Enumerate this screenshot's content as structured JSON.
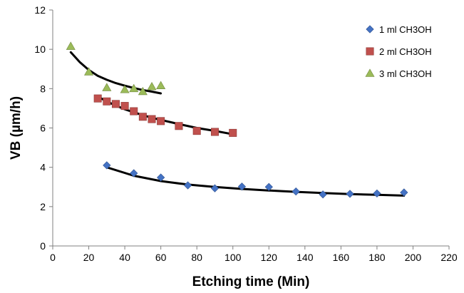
{
  "chart_data": {
    "type": "scatter",
    "xlabel": "Etching time (Min)",
    "ylabel": "VB (µm/h)",
    "xlim": [
      0,
      220
    ],
    "ylim": [
      0,
      12
    ],
    "x_ticks": [
      0,
      20,
      40,
      60,
      80,
      100,
      120,
      140,
      160,
      180,
      200,
      220
    ],
    "y_ticks": [
      0,
      2,
      4,
      6,
      8,
      10,
      12
    ],
    "grid": false,
    "legend_position": "top-right",
    "series": [
      {
        "name": "1 ml CH3OH",
        "marker": "diamond",
        "color": "#4472C4",
        "x": [
          30,
          45,
          60,
          75,
          90,
          105,
          120,
          135,
          150,
          165,
          180,
          195
        ],
        "y": [
          4.1,
          3.7,
          3.48,
          3.08,
          2.93,
          3.02,
          3.0,
          2.77,
          2.62,
          2.65,
          2.67,
          2.72
        ],
        "trend": {
          "x": [
            30,
            45,
            60,
            75,
            90,
            105,
            120,
            135,
            150,
            165,
            180,
            195
          ],
          "y": [
            4.0,
            3.57,
            3.3,
            3.12,
            3.0,
            2.9,
            2.82,
            2.75,
            2.69,
            2.64,
            2.6,
            2.56
          ]
        }
      },
      {
        "name": "2 ml CH3OH",
        "marker": "square",
        "color": "#C0504D",
        "x": [
          25,
          30,
          35,
          40,
          45,
          50,
          55,
          60,
          70,
          80,
          90,
          100
        ],
        "y": [
          7.5,
          7.35,
          7.22,
          7.12,
          6.85,
          6.57,
          6.45,
          6.35,
          6.1,
          5.85,
          5.8,
          5.75
        ],
        "trend": {
          "x": [
            25,
            30,
            35,
            40,
            45,
            50,
            55,
            60,
            70,
            80,
            90,
            100
          ],
          "y": [
            7.6,
            7.35,
            7.14,
            6.95,
            6.8,
            6.65,
            6.52,
            6.41,
            6.2,
            6.0,
            5.85,
            5.68
          ]
        }
      },
      {
        "name": "3 ml CH3OH",
        "marker": "triangle",
        "color": "#9BBB59",
        "x": [
          10,
          20,
          30,
          40,
          45,
          50,
          55,
          60
        ],
        "y": [
          10.15,
          8.85,
          8.05,
          7.95,
          8.0,
          7.85,
          8.1,
          8.15
        ],
        "trend": {
          "x": [
            10,
            15,
            20,
            25,
            30,
            35,
            40,
            45,
            50,
            55,
            60
          ],
          "y": [
            9.85,
            9.35,
            8.95,
            8.65,
            8.45,
            8.28,
            8.15,
            8.03,
            7.93,
            7.85,
            7.76
          ]
        }
      }
    ]
  }
}
